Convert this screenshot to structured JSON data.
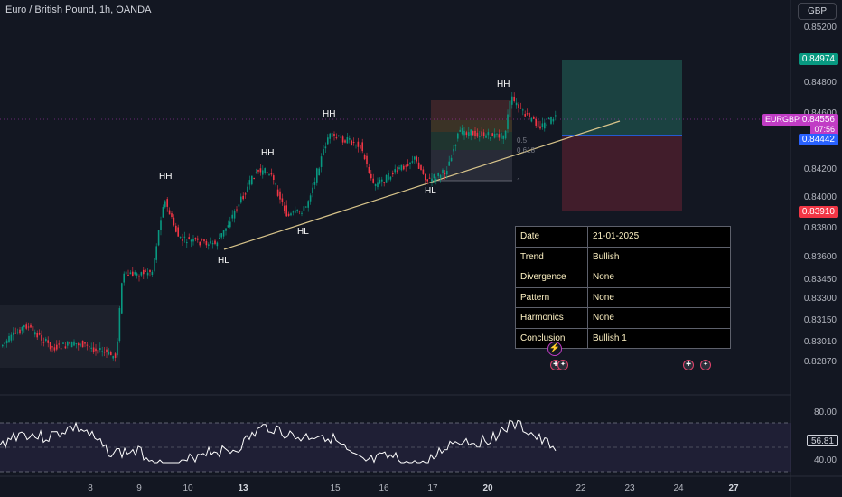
{
  "header": {
    "title": "Euro / British Pound, 1h, OANDA",
    "currency": "GBP"
  },
  "price_axis": {
    "ticks": [
      "0.85200",
      "0.84800",
      "0.84600",
      "0.84200",
      "0.84000",
      "0.83800",
      "0.83600",
      "0.83450",
      "0.83300",
      "0.83150",
      "0.83010",
      "0.82870"
    ],
    "badges": {
      "target": "0.84974",
      "current_price": "0.84556",
      "countdown": "07:56",
      "entry": "0.84442",
      "stop": "0.83910"
    },
    "symbol": "EURGBP"
  },
  "pattern_labels": [
    "HH",
    "HH",
    "HH",
    "HH",
    "HL",
    "HL",
    "HL"
  ],
  "fib_labels": [
    "0.5",
    "0.618",
    "1"
  ],
  "info_table": {
    "rows": [
      {
        "key": "Date",
        "value": "21-01-2025"
      },
      {
        "key": "Trend",
        "value": "Bullish"
      },
      {
        "key": "Divergence",
        "value": "None"
      },
      {
        "key": "Pattern",
        "value": "None"
      },
      {
        "key": "Harmonics",
        "value": "None"
      },
      {
        "key": "Conclusion",
        "value": "Bullish 1"
      }
    ]
  },
  "time_axis": [
    "8",
    "9",
    "10",
    "13",
    "15",
    "16",
    "17",
    "20",
    "22",
    "23",
    "24",
    "27"
  ],
  "rsi": {
    "upper": "80.00",
    "lower": "40.00",
    "current": "56.81"
  },
  "colors": {
    "background": "#131722",
    "up_candle": "#089981",
    "down_candle": "#f23645",
    "target_zone": "#1e4d4a",
    "stop_zone": "#4d1f2e",
    "symbol_badge": "#c13cc5",
    "entry_line": "#2962ff",
    "trendline": "#d9c58b"
  }
}
